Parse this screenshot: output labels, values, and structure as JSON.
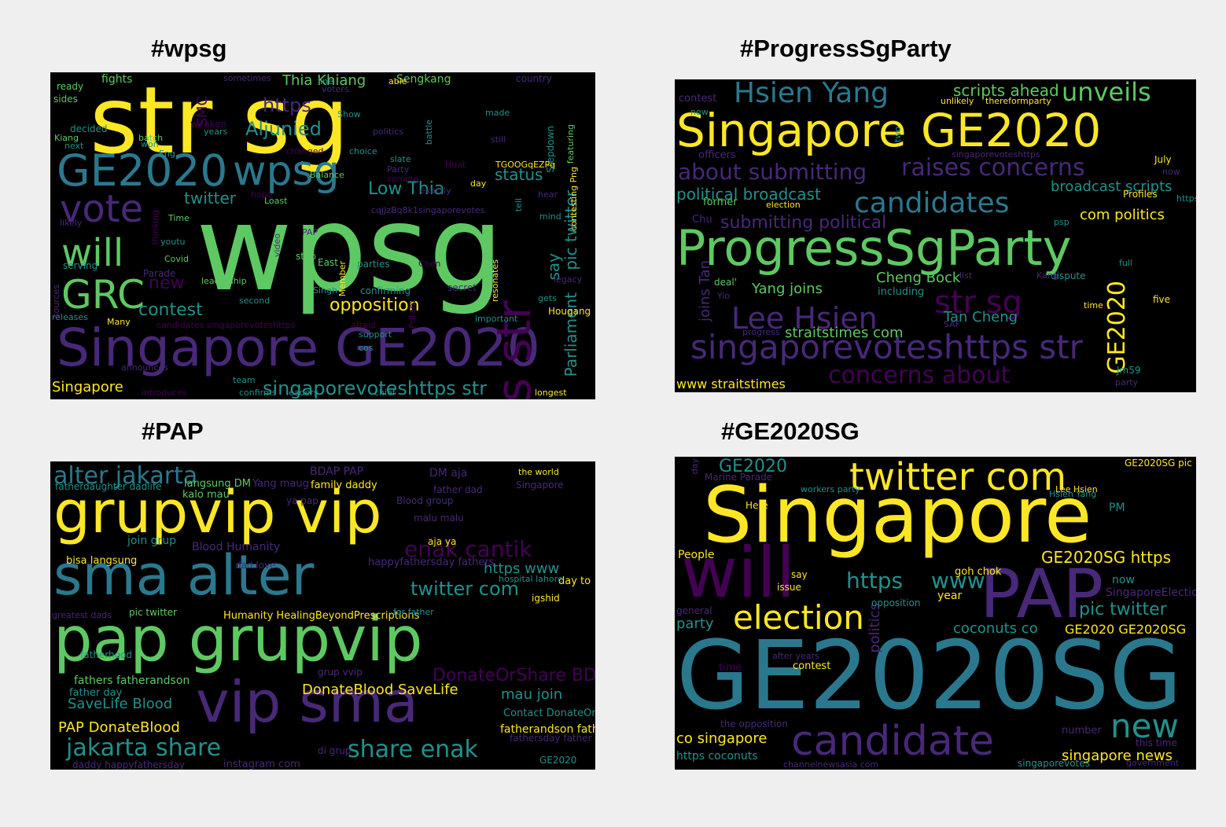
{
  "colors": {
    "background": "#efefef",
    "cloud_background": "#000000",
    "yellow": "#fde725",
    "green": "#5ec962",
    "teal": "#21918c",
    "blue": "#3b528b",
    "purple": "#440154",
    "violet": "#482878",
    "aqua": "#2a788e"
  },
  "panels": [
    {
      "title": "#wpsg",
      "words": [
        "str sg",
        "wpsg",
        "Singapore GE2020",
        "GE2020",
        "wpsg",
        "vote",
        "will",
        "GRC",
        "https str",
        "Aljunied",
        "Thia Khiang",
        "Low Thia",
        "status",
        "https",
        "contest",
        "opposition",
        "singaporevoteshttps str",
        "Singapore",
        "Parliament",
        "pic twitter",
        "twitter",
        "new",
        "say",
        "SMC",
        "Sengkang",
        "fights",
        "sometimes",
        "ready",
        "sides",
        "decided",
        "Kiang",
        "next",
        "weaken",
        "years",
        "won",
        "batch",
        "politics",
        "voters",
        "Show",
        "made",
        "country",
        "Balance",
        "changed",
        "choice",
        "slate",
        "Party",
        "coming",
        "Huat",
        "hear",
        "mind",
        "Time",
        "thinking",
        "likely",
        "youtu",
        "Covid",
        "Parade",
        "serving",
        "leadership",
        "second",
        "video",
        "step",
        "PAP",
        "parties",
        "confirming",
        "Singh",
        "secret",
        "legacy",
        "gets",
        "Hougang",
        "Chen",
        "Member",
        "resonates",
        "releases",
        "Many",
        "candidates singaporevoteshttps",
        "afraid",
        "support",
        "cos",
        "important",
        "team",
        "leaders",
        "confirms",
        "introduces",
        "announces",
        "chief",
        "longest",
        "Pritam",
        "sources",
        "tell",
        "battle",
        "Stepdown",
        "featuring",
        "contesting Png",
        "TGOOGqEZPq",
        "cqjJzBq8k1singaporevotes",
        "exactly",
        "day",
        "hope",
        "Loast",
        "Eng",
        "able",
        "line",
        "still",
        "East",
        "non",
        "https"
      ]
    },
    {
      "title": "#ProgressSgParty",
      "words": [
        "Singapore GE2020",
        "ProgressSgParty",
        "Hsien Yang",
        "unveils",
        "candidates",
        "raises concerns",
        "about submitting",
        "political broadcast",
        "submitting political",
        "singaporevoteshttps str",
        "Lee Hsien",
        "str sg",
        "concerns about",
        "GE2020",
        "broadcast scripts",
        "com politics",
        "scripts ahead",
        "Cheng Bock",
        "Yang joins",
        "straitstimes com",
        "Tan Cheng",
        "www straitstimes",
        "joins Tan",
        "contest",
        "officers",
        "former",
        "election",
        "Chu",
        "unlikely",
        "thereformparty",
        "singaporevoteshttps",
        "July",
        "now",
        "Profiles",
        "https",
        "psp",
        "full",
        "dispute",
        "Kang",
        "list",
        "including",
        "deal'",
        "Yio",
        "five",
        "SAF",
        "time",
        "party",
        "Jm59",
        "two",
        "new",
        "progress"
      ]
    },
    {
      "title": "#PAP",
      "words": [
        "grupvip vip",
        "pap grupvip",
        "sma alter",
        "vip sma",
        "alter jakarta",
        "enak cantik",
        "twitter com",
        "jakarta share",
        "share enak",
        "https www",
        "DonateBlood SaveLife",
        "SaveLife Blood",
        "PAP DonateBlood",
        "BDAP PAP",
        "DM aja",
        "Blood Humanity",
        "Humanity HealingBeyondPrescriptions",
        "DonateOrShare BDAP",
        "mau join",
        "join grup",
        "bisa langsung",
        "happyfathersday fathers",
        "fathers fatherandson",
        "father day",
        "fatherandson fatherhood",
        "instagram com",
        "Contact DonateOrShare",
        "langsung DM",
        "kalo mau",
        "Yang maug",
        "family daddy",
        "Blood group",
        "ya pap",
        "malu malu",
        "the world",
        "Singapore",
        "fatherhood",
        "igshid",
        "day to",
        "pic twitter",
        "grup vvip",
        "di grup",
        "GE2020",
        "father dad",
        "aja ya",
        "daddy happyfathersday",
        "fathersday father",
        "fatherdaughter dadlife",
        "dad love",
        "hospital lahore",
        "for father",
        "greatest dads"
      ]
    },
    {
      "title": "#GE2020SG",
      "words": [
        "Singapore",
        "GE2020SG",
        "PAP",
        "will",
        "twitter com",
        "election",
        "candidate",
        "new",
        "https",
        "www",
        "pic twitter",
        "GE2020SG https",
        "coconuts co",
        "GE2020 GE2020SG",
        "co singapore",
        "https coconuts",
        "singapore news",
        "party",
        "politics",
        "GE2020",
        "SingaporeElection",
        "year",
        "now",
        "People",
        "issue",
        "say",
        "goh chok",
        "opposition",
        "the opposition",
        "contest",
        "number",
        "time",
        "this time",
        "general",
        "Marine Parade",
        "workers party",
        "Hsien Yang",
        "Lee Hsien",
        "PM",
        "Here",
        "singaporevotes",
        "channelnewsasia com",
        "day",
        "after years",
        "government",
        "GE2020SG pic"
      ]
    }
  ]
}
